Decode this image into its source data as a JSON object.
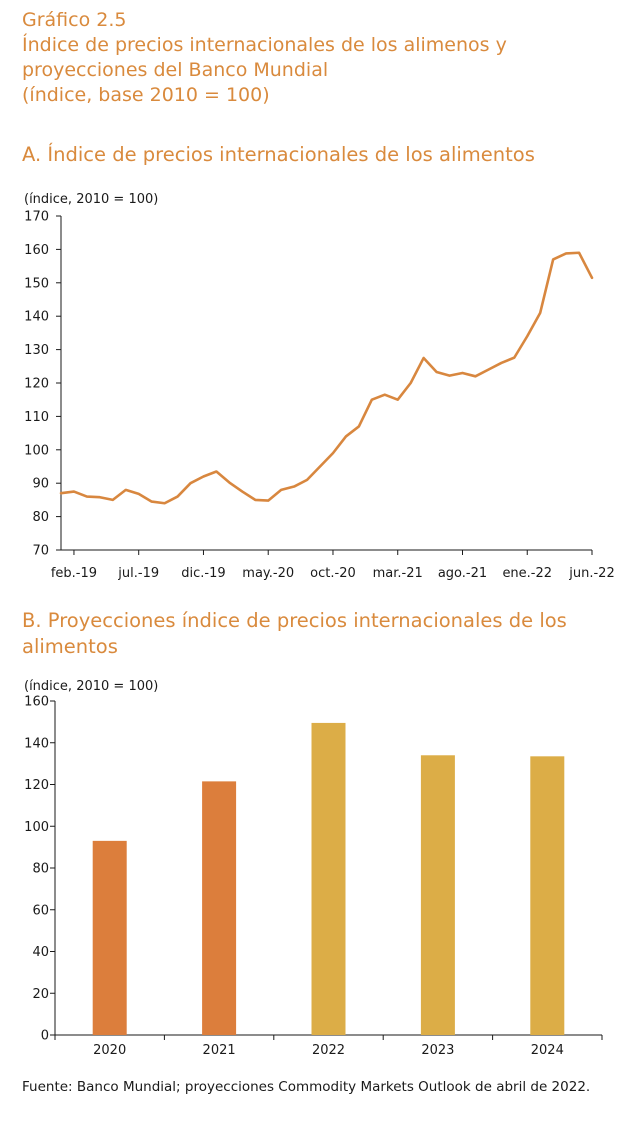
{
  "header": {
    "figure_number": "Gráfico 2.5",
    "title_line1": "Índice de precios internacionales de los alimenos y",
    "title_line2": "proyecciones del Banco Mundial",
    "title_line3": "(índice, base 2010 = 100)"
  },
  "panel_a": {
    "subtitle": "A. Índice de precios internacionales de los alimentos"
  },
  "panel_b": {
    "subtitle": "B. Proyecciones índice de precios internacionales de los alimentos"
  },
  "colors": {
    "title": "#d98a3d",
    "line": "#d8873f",
    "bar_actual": "#dc7e3c",
    "bar_projection": "#dcad47"
  },
  "chart_data": [
    {
      "type": "line",
      "ylabel": "(índice, 2010 = 100)",
      "ylim": [
        70,
        170
      ],
      "yticks": [
        70,
        80,
        90,
        100,
        110,
        120,
        130,
        140,
        150,
        160,
        170
      ],
      "xtick_labels": [
        "feb.-19",
        "jul.-19",
        "dic.-19",
        "may.-20",
        "oct.-20",
        "mar.-21",
        "ago.-21",
        "ene.-22",
        "jun.-22"
      ],
      "x": [
        "ene.-19",
        "feb.-19",
        "mar.-19",
        "abr.-19",
        "may.-19",
        "jun.-19",
        "jul.-19",
        "ago.-19",
        "sep.-19",
        "oct.-19",
        "nov.-19",
        "dic.-19",
        "ene.-20",
        "feb.-20",
        "mar.-20",
        "abr.-20",
        "may.-20",
        "jun.-20",
        "jul.-20",
        "ago.-20",
        "sep.-20",
        "oct.-20",
        "nov.-20",
        "dic.-20",
        "ene.-21",
        "feb.-21",
        "mar.-21",
        "abr.-21",
        "may.-21",
        "jun.-21",
        "jul.-21",
        "ago.-21",
        "sep.-21",
        "oct.-21",
        "nov.-21",
        "dic.-21",
        "ene.-22",
        "feb.-22",
        "mar.-22",
        "abr.-22",
        "may.-22",
        "jun.-22"
      ],
      "values": [
        87,
        87.5,
        86,
        85.8,
        85,
        88,
        86.8,
        84.5,
        84,
        86,
        90,
        92,
        93.5,
        90.2,
        87.5,
        85,
        84.8,
        88,
        89,
        91,
        95,
        99,
        104,
        107,
        115,
        116.5,
        115,
        120,
        127.5,
        123.3,
        122.2,
        123,
        122,
        124,
        126,
        127.6,
        134,
        141,
        157,
        158.8,
        159,
        151.5
      ],
      "grid": false
    },
    {
      "type": "bar",
      "ylabel": "(índice, 2010 = 100)",
      "ylim": [
        0,
        160
      ],
      "yticks": [
        0,
        20,
        40,
        60,
        80,
        100,
        120,
        140,
        160
      ],
      "categories": [
        "2020",
        "2021",
        "2022",
        "2023",
        "2024"
      ],
      "values": [
        93,
        121.5,
        149.5,
        134,
        133.5
      ],
      "projection": [
        false,
        false,
        true,
        true,
        true
      ],
      "grid": false
    }
  ],
  "footer": {
    "source": "Fuente: Banco Mundial; proyecciones Commodity Markets Outlook de abril de 2022."
  }
}
